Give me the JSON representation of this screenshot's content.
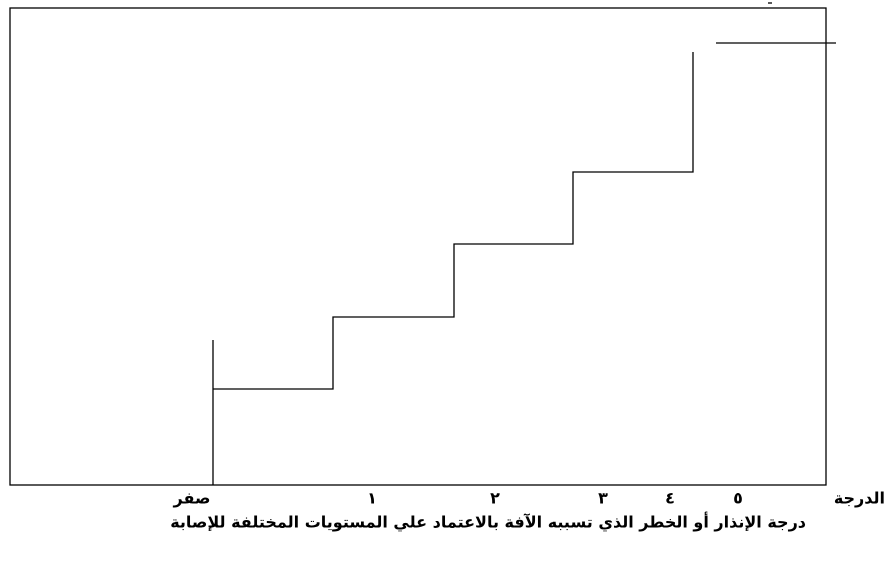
{
  "axis": {
    "labels": [
      "صفر",
      "١",
      "٢",
      "٣",
      "٤",
      "٥"
    ],
    "axis_title": "الدرجة"
  },
  "caption": "درجة الإنذار أو الخطر الذي تسببه الآفة بالاعتماد علي المستويات المختلفة للإصابة"
}
